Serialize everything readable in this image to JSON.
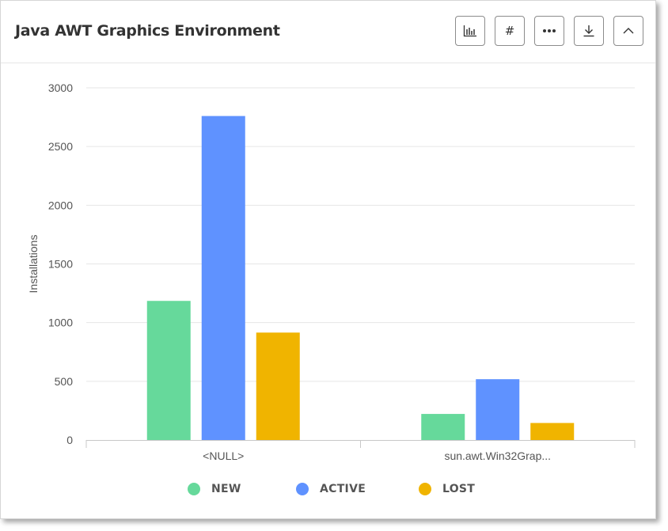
{
  "header": {
    "title": "Java AWT Graphics Environment",
    "buttons": [
      {
        "name": "bar-chart-button",
        "icon": "bar-chart-icon"
      },
      {
        "name": "number-button",
        "icon": "hash-icon",
        "glyph": "#"
      },
      {
        "name": "more-options-button",
        "icon": "ellipsis-icon"
      },
      {
        "name": "download-button",
        "icon": "download-icon"
      },
      {
        "name": "collapse-button",
        "icon": "chevron-up-icon"
      }
    ]
  },
  "colors": {
    "new": "#66d99b",
    "active": "#5f92ff",
    "lost": "#f0b400",
    "grid": "#e6e6e6",
    "axis": "#c8c8c8"
  },
  "chart_data": {
    "type": "bar",
    "title": "Java AWT Graphics Environment",
    "xlabel": "",
    "ylabel": "Installations",
    "ylim": [
      0,
      3000
    ],
    "yticks": [
      0,
      500,
      1000,
      1500,
      2000,
      2500,
      3000
    ],
    "categories": [
      "<NULL>",
      "sun.awt.Win32Grap..."
    ],
    "series": [
      {
        "name": "NEW",
        "color": "#66d99b",
        "values": [
          1185,
          222
        ]
      },
      {
        "name": "ACTIVE",
        "color": "#5f92ff",
        "values": [
          2760,
          518
        ]
      },
      {
        "name": "LOST",
        "color": "#f0b400",
        "values": [
          915,
          145
        ]
      }
    ],
    "grid": true,
    "legend_position": "bottom"
  }
}
